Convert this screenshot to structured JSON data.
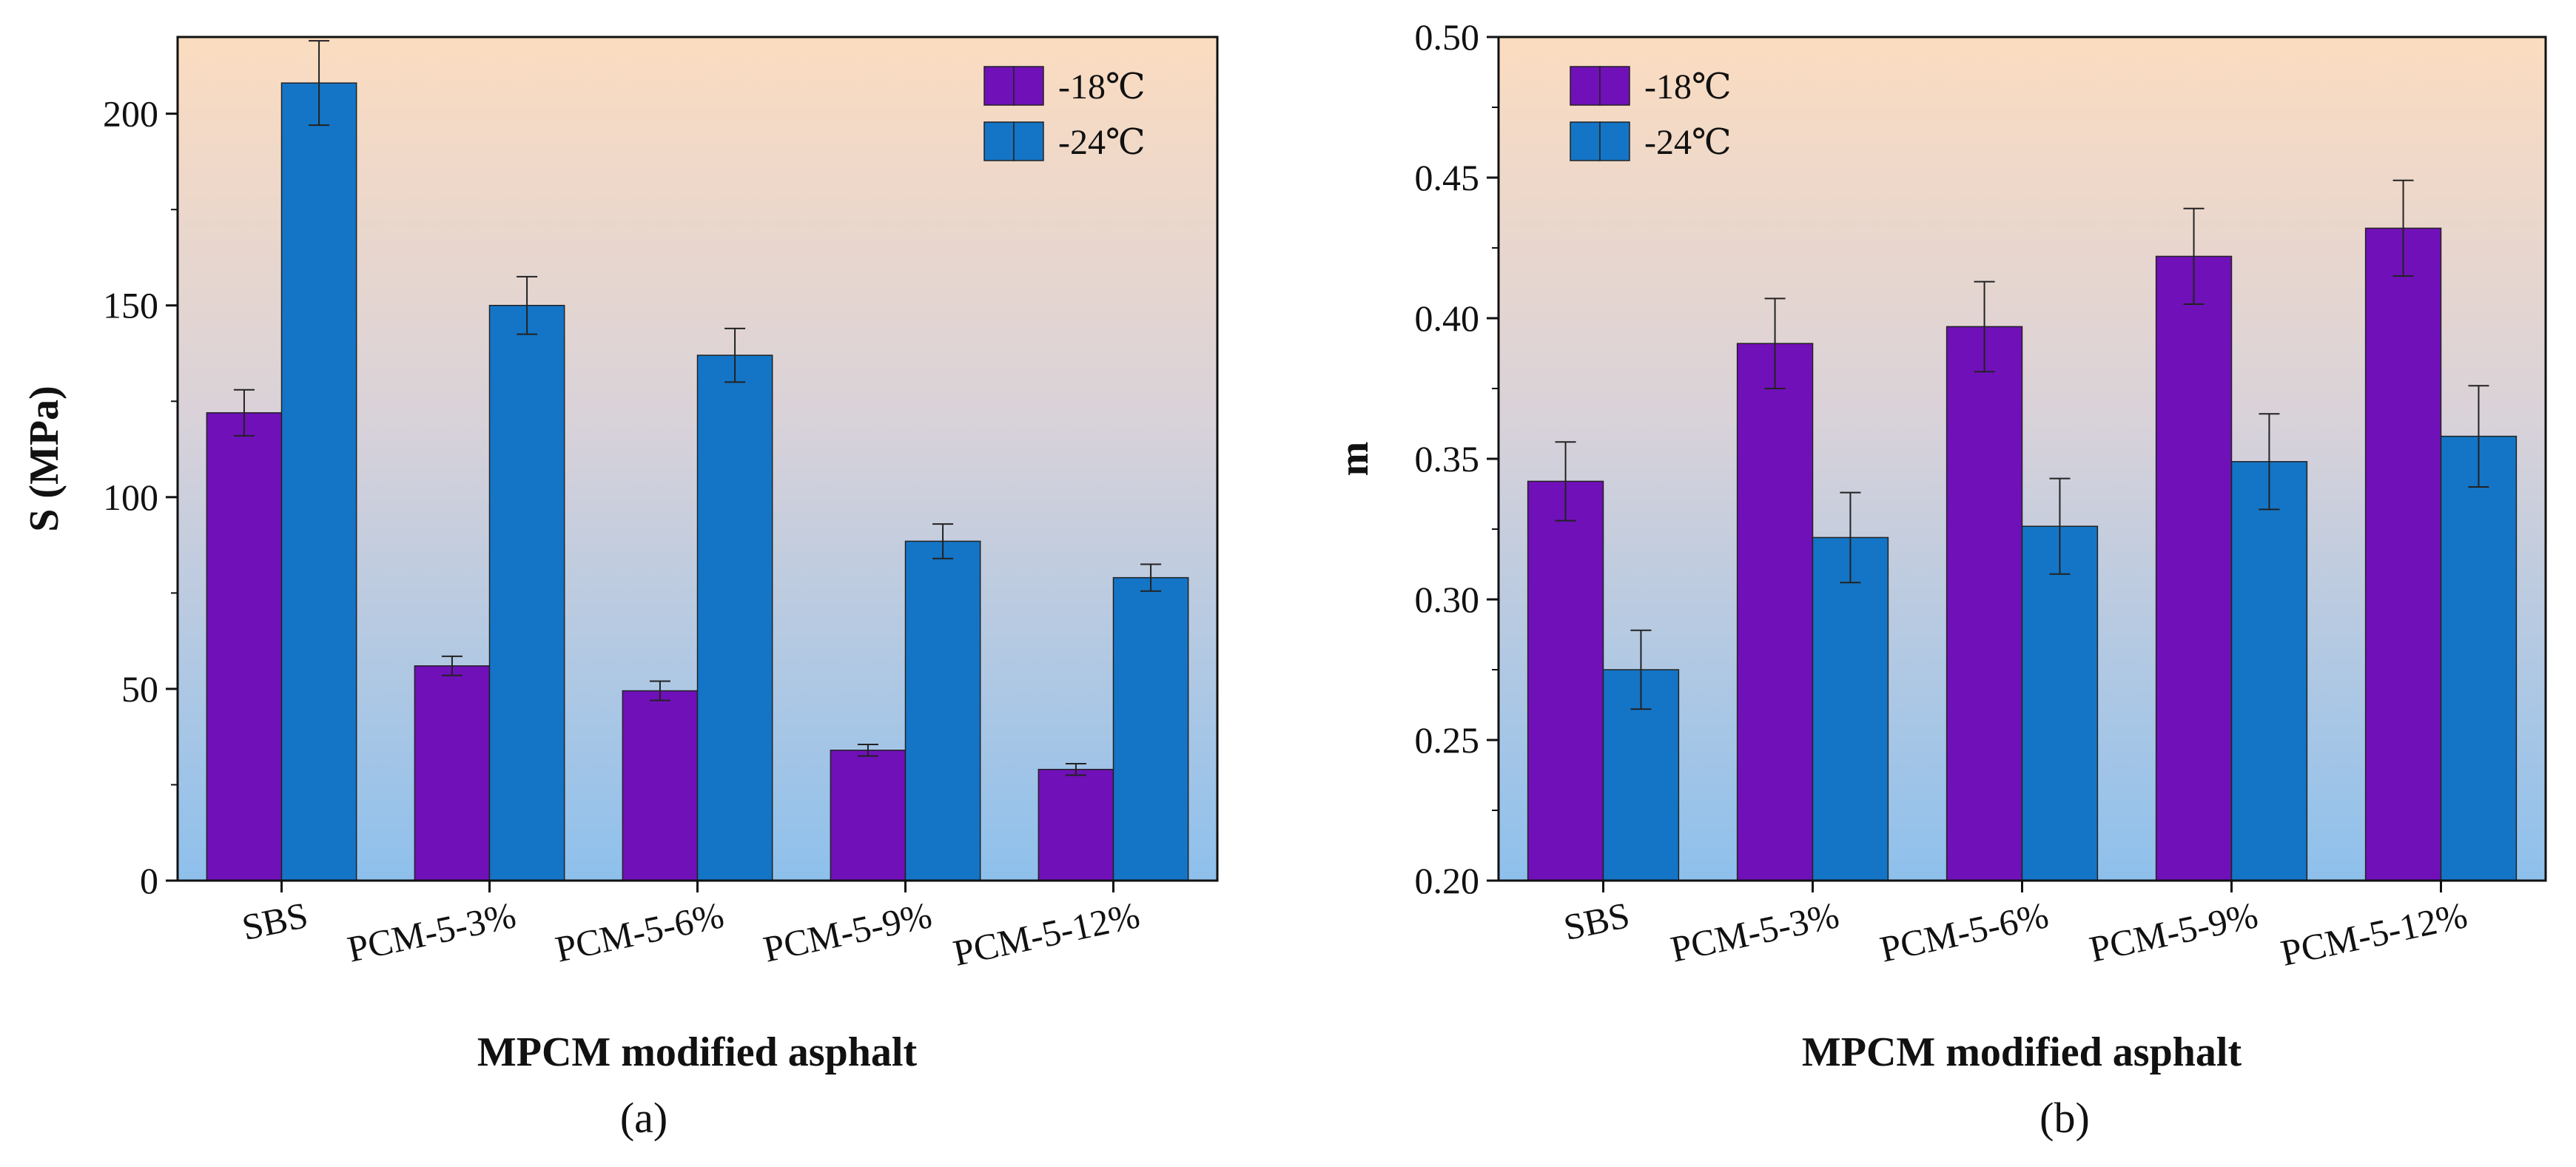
{
  "chart_data": [
    {
      "type": "bar",
      "panel_label": "(a)",
      "xlabel": "MPCM modified asphalt",
      "ylabel": "S (MPa)",
      "categories": [
        "SBS",
        "PCM-5-3%",
        "PCM-5-6%",
        "PCM-5-9%",
        "PCM-5-12%"
      ],
      "ylim": [
        0,
        220
      ],
      "yticks": [
        0,
        50,
        100,
        150,
        200
      ],
      "ytick_labels": [
        "0",
        "50",
        "100",
        "150",
        "200"
      ],
      "legend_position": "top-right",
      "series": [
        {
          "name": "-18℃",
          "color": "#7010B8",
          "values": [
            122,
            56,
            49.5,
            34,
            29
          ],
          "errors": [
            6,
            2.5,
            2.5,
            1.5,
            1.5
          ]
        },
        {
          "name": "-24℃",
          "color": "#1475C6",
          "values": [
            208,
            150,
            137,
            88.5,
            79
          ],
          "errors": [
            11,
            7.5,
            7,
            4.5,
            3.5
          ]
        }
      ]
    },
    {
      "type": "bar",
      "panel_label": "(b)",
      "xlabel": "MPCM modified asphalt",
      "ylabel": "m",
      "categories": [
        "SBS",
        "PCM-5-3%",
        "PCM-5-6%",
        "PCM-5-9%",
        "PCM-5-12%"
      ],
      "ylim": [
        0.2,
        0.5
      ],
      "yticks": [
        0.2,
        0.25,
        0.3,
        0.35,
        0.4,
        0.45,
        0.5
      ],
      "ytick_labels": [
        "0.20",
        "0.25",
        "0.30",
        "0.35",
        "0.40",
        "0.45",
        "0.50"
      ],
      "legend_position": "top-left",
      "series": [
        {
          "name": "-18℃",
          "color": "#7010B8",
          "values": [
            0.342,
            0.391,
            0.397,
            0.422,
            0.432
          ],
          "errors": [
            0.014,
            0.016,
            0.016,
            0.017,
            0.017
          ]
        },
        {
          "name": "-24℃",
          "color": "#1475C6",
          "values": [
            0.275,
            0.322,
            0.326,
            0.349,
            0.358
          ],
          "errors": [
            0.014,
            0.016,
            0.017,
            0.017,
            0.018
          ]
        }
      ]
    }
  ]
}
